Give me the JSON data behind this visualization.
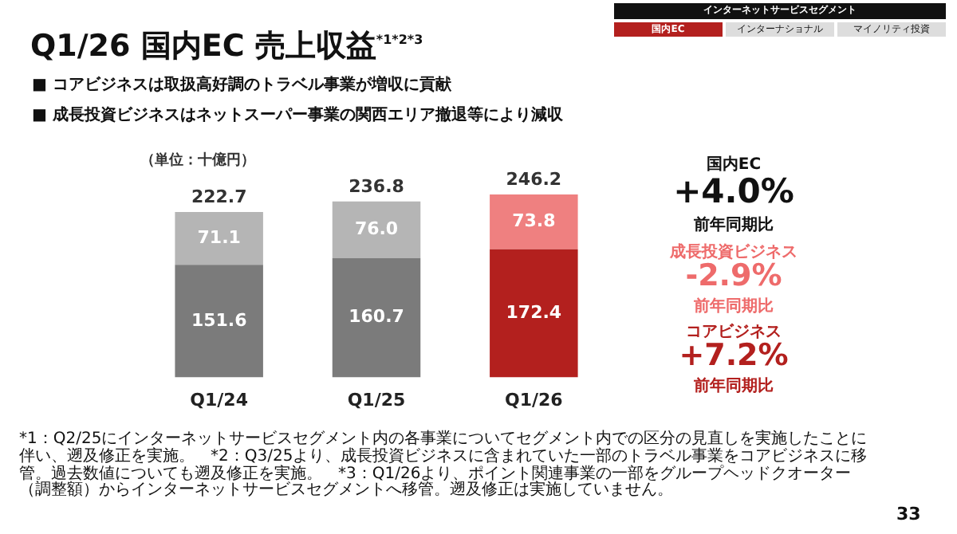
{
  "chart_data": {
    "type": "bar",
    "title": "Q1/26 国内EC 売上収益$^{*1*2*3}$",
    "stacked": true,
    "grid": false,
    "legend": false,
    "tick_labels": "x",
    "categories": [
      "Q1/24",
      "Q1/25",
      "Q1/26"
    ],
    "series": [
      {
        "colors": [
          "#7b7b7b",
          "#7b7b7b",
          "#b3201e"
        ],
        "values": [
          151.6,
          160.7,
          172.4
        ],
        "value_labels": [
          "151.6",
          "160.7",
          "172.4"
        ]
      },
      {
        "colors": [
          "#b5b5b5",
          "#b5b5b5",
          "#ef8080"
        ],
        "values": [
          71.1,
          76.0,
          73.8
        ],
        "value_labels": [
          "71.1",
          "76.0",
          "73.8"
        ]
      }
    ],
    "totals": [
      "222.7",
      "236.8",
      "246.2"
    ],
    "annotations": [
      "■ コアビジネスは取扱高好調のトラベル事業が増収に貢献",
      "■ 成長投資ビジネスはネットスーパー事業の関西エリア撤退等により減収",
      "（単位：十億円）",
      "国内EC",
      "+4.0%",
      "前年同期比",
      "成長投資ビジネス",
      "-2.9%",
      "前年同期比",
      "コアビジネス",
      "+7.2%",
      "前年同期比",
      "インターネットサービスセグメント",
      "国内EC",
      "インターナショナル",
      "マイノリティ投資",
      "*1：Q2/25にインターネットサービスセグメント内の各事業についてセグメント内での区分の見直しを実施したことに伴い、遡及修正を実施。　*2：Q3/25より、成長投資ビジネスに含まれていた一部のトラベル事業をコアビジネスに移管。過去数値についても遡及修正を実施。　*3：Q1/26より、ポイント関連事業の一部をグループヘッドクオーター（調整額）からインターネットサービスセグメントへ移管。遡及修正は実施していません。",
      "33"
    ]
  }
}
